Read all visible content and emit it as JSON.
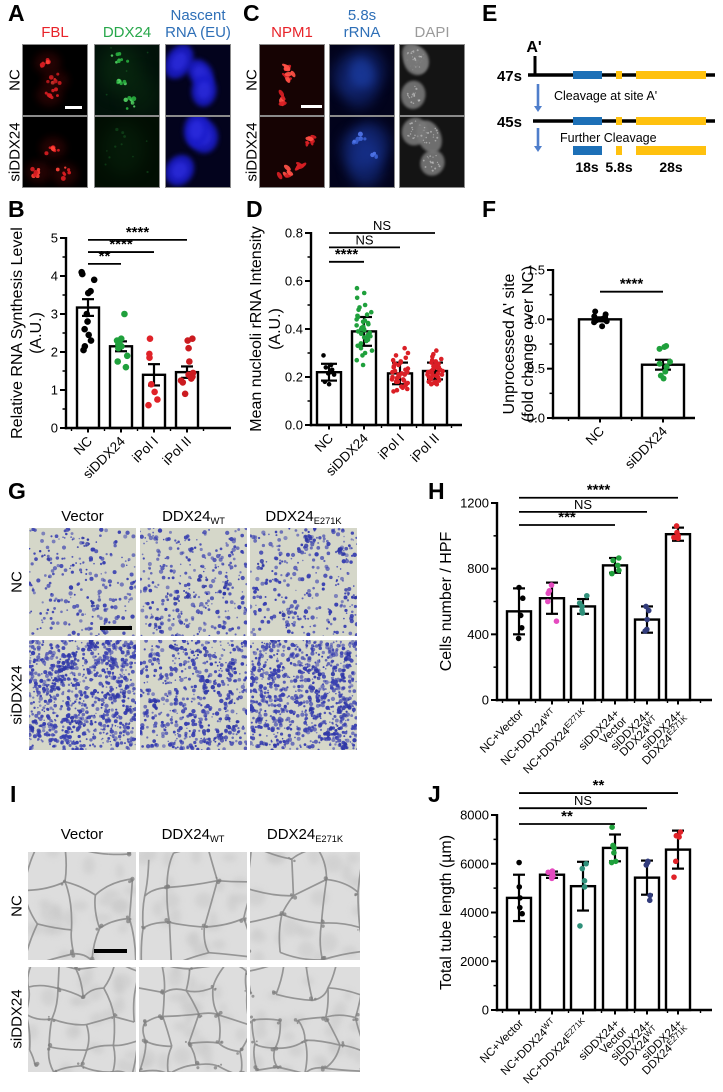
{
  "panelA": {
    "letter": "A",
    "col_headers": [
      {
        "text": "FBL",
        "color": "#e8232a"
      },
      {
        "text": "DDX24",
        "color": "#27a74a"
      },
      {
        "text": "Nascent\nRNA (EU)",
        "color": "#2e6fb7"
      }
    ],
    "row_labels": [
      "NC",
      "siDDX24"
    ],
    "images": [
      [
        {
          "style": "puncta-red"
        },
        {
          "style": "puncta-green"
        },
        {
          "style": "nuclei-blue"
        }
      ],
      [
        {
          "style": "puncta-red"
        },
        {
          "style": "puncta-green-dim"
        },
        {
          "style": "nuclei-blue"
        }
      ]
    ]
  },
  "panelC": {
    "letter": "C",
    "col_headers": [
      {
        "text": "NPM1",
        "color": "#e8232a"
      },
      {
        "text": "5.8s\nrRNA",
        "color": "#2e6fb7"
      },
      {
        "text": "DAPI",
        "color": "#9b9b9b"
      }
    ],
    "row_labels": [
      "NC",
      "siDDX24"
    ],
    "images": [
      [
        {
          "style": "puncta-red-dark"
        },
        {
          "style": "cells-blue-dim"
        },
        {
          "style": "nuclei-gray"
        }
      ],
      [
        {
          "style": "puncta-red-dark"
        },
        {
          "style": "cells-blue-bright"
        },
        {
          "style": "nuclei-gray"
        }
      ]
    ]
  },
  "panelE": {
    "letter": "E",
    "site": "A'",
    "pre1": "47s",
    "pre2": "45s",
    "step1": "Cleavage at site A'",
    "step2": "Further Cleavage",
    "fragments": [
      "18s",
      "5.8s",
      "28s"
    ],
    "colors": {
      "blue": "#1d70b7",
      "yellow": "#ffc10e",
      "arrow": "#4f7ecb",
      "line": "#000000"
    }
  },
  "panelG": {
    "letter": "G",
    "col_headers": [
      "Vector",
      "DDX24^{WT}",
      "DDX24^{E271K}"
    ],
    "row_labels": [
      "NC",
      "siDDX24"
    ],
    "images": [
      [
        {
          "style": "migration",
          "n": 230
        },
        {
          "style": "migration",
          "n": 300
        },
        {
          "style": "migration",
          "n": 280
        }
      ],
      [
        {
          "style": "migration",
          "n": 850
        },
        {
          "style": "migration",
          "n": 520
        },
        {
          "style": "migration",
          "n": 800
        }
      ]
    ]
  },
  "panelI": {
    "letter": "I",
    "col_headers": [
      "Vector",
      "DDX24^{WT}",
      "DDX24^{E271K}"
    ],
    "row_labels": [
      "NC",
      "siDDX24"
    ],
    "images": [
      [
        {
          "style": "tubes",
          "grid": 3
        },
        {
          "style": "tubes",
          "grid": 3
        },
        {
          "style": "tubes",
          "grid": 3
        }
      ],
      [
        {
          "style": "tubes",
          "grid": 4
        },
        {
          "style": "tubes",
          "grid": 4
        },
        {
          "style": "tubes",
          "grid": 4
        }
      ]
    ]
  },
  "chart_data": [
    {
      "panel": "B",
      "type": "bar",
      "categories": [
        "NC",
        "siDDX24",
        "iPol I",
        "iPol II"
      ],
      "values": [
        3.17,
        2.15,
        1.4,
        1.47
      ],
      "errors": [
        0.22,
        0.13,
        0.28,
        0.15
      ],
      "points": [
        [
          4.1,
          4.05,
          3.9,
          3.6,
          3.55,
          3.0,
          2.8,
          2.6,
          2.45,
          2.3,
          2.15,
          2.05
        ],
        [
          3.0,
          2.35,
          2.3,
          2.25,
          2.2,
          2.15,
          2.1,
          1.9,
          1.75,
          1.6
        ],
        [
          2.35,
          1.95,
          1.85,
          1.15,
          0.95,
          0.75,
          0.6
        ],
        [
          2.35,
          2.3,
          2.1,
          1.75,
          1.45,
          1.4,
          1.35,
          1.3,
          1.25,
          1.2,
          0.9
        ]
      ],
      "colors": [
        "#000000",
        "#1fa03c",
        "#e02228",
        "#cb1b20"
      ],
      "ylabel": [
        "Relative RNA Synthesis Level",
        "(A.U.)"
      ],
      "ylim": [
        0,
        5
      ],
      "ytick": 1,
      "yminor": 0.5,
      "ydec": 0,
      "sig": [
        {
          "a": 0,
          "b": 1,
          "t": "**",
          "y": 4.32
        },
        {
          "a": 0,
          "b": 2,
          "t": "****",
          "y": 4.63
        },
        {
          "a": 0,
          "b": 3,
          "t": "****",
          "y": 4.95
        }
      ]
    },
    {
      "panel": "D",
      "type": "bar",
      "categories": [
        "NC",
        "siDDX24",
        "iPol I",
        "iPol II"
      ],
      "values": [
        0.22,
        0.39,
        0.215,
        0.225
      ],
      "errors": [
        0.035,
        0.06,
        0.045,
        0.035
      ],
      "points": [
        [
          0.29,
          0.25,
          0.24,
          0.23,
          0.22,
          0.215,
          0.21,
          0.18,
          0.17
        ],
        [
          0.57,
          0.55,
          0.53,
          0.5,
          0.49,
          0.48,
          0.47,
          0.46,
          0.455,
          0.45,
          0.44,
          0.435,
          0.43,
          0.425,
          0.42,
          0.415,
          0.41,
          0.405,
          0.4,
          0.4,
          0.395,
          0.39,
          0.385,
          0.38,
          0.375,
          0.37,
          0.365,
          0.36,
          0.355,
          0.35,
          0.34,
          0.335,
          0.33,
          0.32,
          0.31,
          0.3,
          0.29,
          0.27,
          0.25
        ],
        [
          0.32,
          0.3,
          0.29,
          0.28,
          0.27,
          0.265,
          0.26,
          0.255,
          0.25,
          0.245,
          0.24,
          0.235,
          0.23,
          0.225,
          0.22,
          0.22,
          0.215,
          0.21,
          0.21,
          0.205,
          0.2,
          0.2,
          0.195,
          0.19,
          0.19,
          0.185,
          0.18,
          0.18,
          0.175,
          0.17,
          0.165,
          0.16,
          0.155,
          0.15,
          0.145,
          0.14
        ],
        [
          0.31,
          0.295,
          0.285,
          0.275,
          0.27,
          0.265,
          0.26,
          0.255,
          0.25,
          0.245,
          0.24,
          0.24,
          0.235,
          0.23,
          0.23,
          0.225,
          0.225,
          0.22,
          0.22,
          0.215,
          0.215,
          0.21,
          0.21,
          0.205,
          0.205,
          0.2,
          0.2,
          0.195,
          0.19,
          0.19,
          0.185,
          0.18,
          0.18,
          0.175,
          0.17,
          0.17
        ]
      ],
      "colors": [
        "#000000",
        "#1fa03c",
        "#da1f26",
        "#da1f26"
      ],
      "ylabel": [
        "Mean nucleoli rRNA Intensity",
        "(A.U.)"
      ],
      "ylim": [
        0,
        0.8
      ],
      "ytick": 0.2,
      "yminor": 0.1,
      "ydec": 1,
      "sig": [
        {
          "a": 0,
          "b": 1,
          "t": "****",
          "y": 0.68
        },
        {
          "a": 0,
          "b": 2,
          "t": "NS",
          "y": 0.74
        },
        {
          "a": 0,
          "b": 3,
          "t": "NS",
          "y": 0.8
        }
      ]
    },
    {
      "panel": "F",
      "type": "bar",
      "categories": [
        "NC",
        "siDDX24"
      ],
      "values": [
        1.0,
        0.54
      ],
      "errors": [
        0.02,
        0.05
      ],
      "points": [
        [
          1.08,
          1.05,
          1.03,
          1.02,
          1.01,
          1.0,
          0.99,
          0.98,
          0.97,
          0.93
        ],
        [
          0.73,
          0.72,
          0.7,
          0.57,
          0.55,
          0.52,
          0.47,
          0.43,
          0.4
        ]
      ],
      "colors": [
        "#000000",
        "#1fa03c"
      ],
      "ylabel": [
        "Unprocessed A' site",
        "(fold change over NC)"
      ],
      "ylim": [
        0,
        1.5
      ],
      "ytick": 0.5,
      "yminor": 0.25,
      "ydec": 1,
      "sig": [
        {
          "a": 0,
          "b": 1,
          "t": "****",
          "y": 1.28
        }
      ]
    },
    {
      "panel": "H",
      "type": "bar",
      "categories": [
        "NC+Vector",
        "NC+DDX24^{WT}",
        "NC+DDX24^{E271K}",
        "siDDX24+\nVector",
        "siDDX24+\nDDX24^{WT}",
        "siDDX24+\nDDX24^{E271K}"
      ],
      "values": [
        540,
        620,
        570,
        820,
        490,
        1010
      ],
      "errors": [
        140,
        95,
        45,
        45,
        80,
        40
      ],
      "points": [
        [
          685,
          620,
          515,
          440,
          375
        ],
        [
          700,
          665,
          650,
          600,
          480
        ],
        [
          635,
          590,
          570,
          545,
          530
        ],
        [
          865,
          850,
          820,
          790,
          770
        ],
        [
          570,
          545,
          490,
          430,
          420
        ],
        [
          1060,
          1020,
          1000,
          990,
          985
        ]
      ],
      "colors": [
        "#000000",
        "#e54bc0",
        "#2f907a",
        "#1fa03c",
        "#323c7c",
        "#e02228"
      ],
      "ylabel": [
        "Cells number / HPF"
      ],
      "ylim": [
        0,
        1200
      ],
      "ytick": 400,
      "yminor": 200,
      "ydec": 0,
      "sig": [
        {
          "a": 0,
          "b": 3,
          "t": "***",
          "y": 1066
        },
        {
          "a": 0,
          "b": 4,
          "t": "NS",
          "y": 1146
        },
        {
          "a": 0,
          "b": 5,
          "t": "****",
          "y": 1232
        }
      ]
    },
    {
      "panel": "J",
      "type": "bar",
      "categories": [
        "NC+Vector",
        "NC+DDX24^{WT}",
        "NC+DDX24^{E271K}",
        "siDDX24+\nVector",
        "siDDX24+\nDDX24^{WT}",
        "siDDX24+\nDDX24^{E271K}"
      ],
      "values": [
        4600,
        5550,
        5080,
        6650,
        5430,
        6580
      ],
      "errors": [
        950,
        130,
        1000,
        550,
        700,
        780
      ],
      "points": [
        [
          6050,
          5050,
          4600,
          4200,
          3950
        ],
        [
          5700,
          5650,
          5600,
          5500,
          5450,
          5400
        ],
        [
          6000,
          5800,
          5300,
          5050,
          3450
        ],
        [
          7500,
          6750,
          6650,
          6450,
          6100,
          6050
        ],
        [
          6100,
          6050,
          5950,
          4700,
          4500
        ],
        [
          7300,
          7150,
          7100,
          6100,
          5450
        ]
      ],
      "colors": [
        "#000000",
        "#e54bc0",
        "#2f907a",
        "#1fa03c",
        "#323c7c",
        "#e02228"
      ],
      "ylabel": [
        "Total tube length (µm)"
      ],
      "ylim": [
        0,
        8000
      ],
      "ytick": 2000,
      "yminor": 1000,
      "ydec": 0,
      "sig": [
        {
          "a": 0,
          "b": 3,
          "t": "**",
          "y": 7630
        },
        {
          "a": 0,
          "b": 4,
          "t": "NS",
          "y": 8280
        },
        {
          "a": 0,
          "b": 5,
          "t": "**",
          "y": 8900
        }
      ]
    }
  ]
}
